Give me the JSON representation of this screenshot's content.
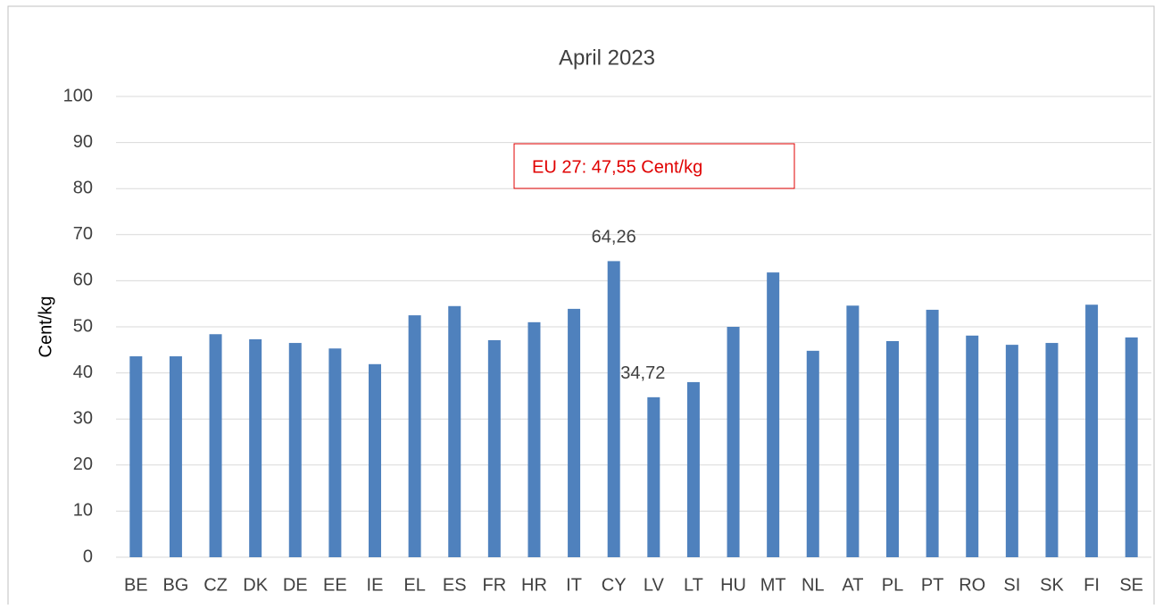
{
  "chart_data": {
    "type": "bar",
    "title": "April 2023",
    "y_label": "Cent/kg",
    "annotation": "EU 27: 47,55 Cent/kg",
    "categories": [
      "BE",
      "BG",
      "CZ",
      "DK",
      "DE",
      "EE",
      "IE",
      "EL",
      "ES",
      "FR",
      "HR",
      "IT",
      "CY",
      "LV",
      "LT",
      "HU",
      "MT",
      "NL",
      "AT",
      "PL",
      "PT",
      "RO",
      "SI",
      "SK",
      "FI",
      "SE"
    ],
    "values": [
      43.6,
      43.6,
      48.4,
      47.3,
      46.5,
      45.3,
      41.9,
      52.5,
      54.5,
      47.1,
      51.0,
      53.9,
      64.26,
      34.72,
      38.0,
      50.0,
      61.8,
      44.8,
      54.6,
      46.9,
      53.7,
      48.1,
      46.1,
      46.5,
      54.8,
      47.7
    ],
    "value_labels": [
      null,
      null,
      null,
      null,
      null,
      null,
      null,
      null,
      null,
      null,
      null,
      null,
      "64,26",
      "34,72",
      null,
      null,
      null,
      null,
      null,
      null,
      null,
      null,
      null,
      null,
      null,
      null
    ],
    "color": "#4f81bd",
    "ylim": [
      0,
      100
    ],
    "yticks": [
      0,
      10,
      20,
      30,
      40,
      50,
      60,
      70,
      80,
      90,
      100
    ],
    "grid": true
  }
}
